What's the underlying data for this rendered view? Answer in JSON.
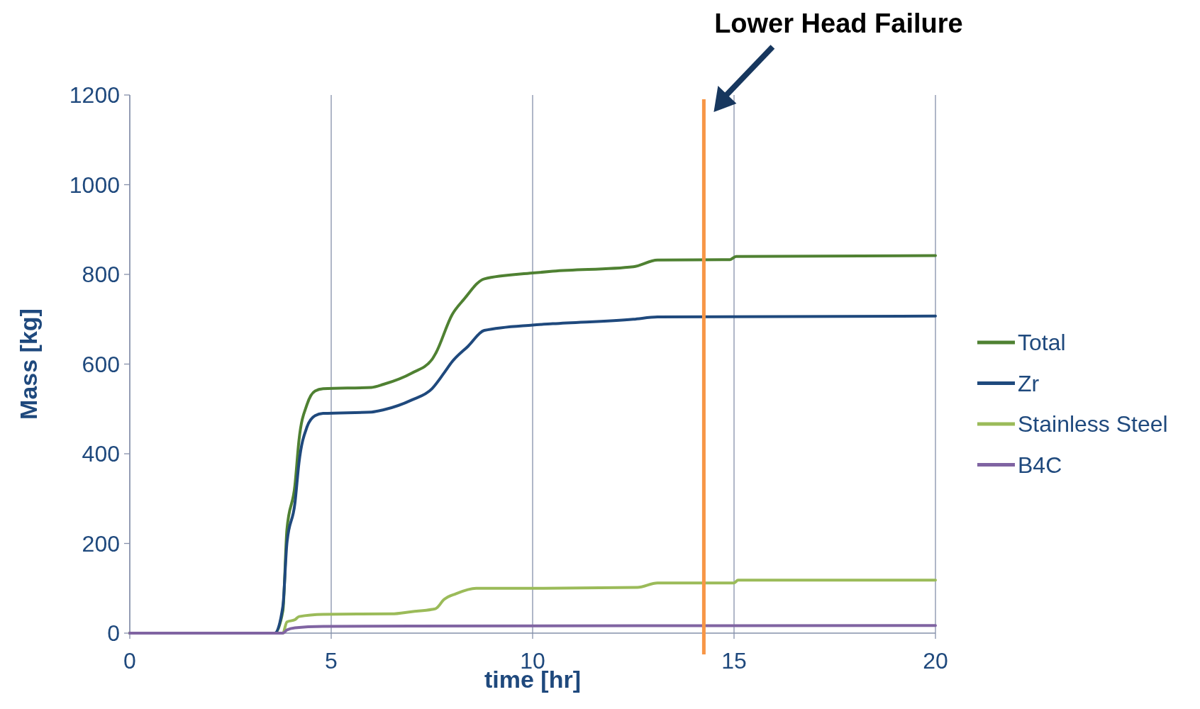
{
  "chart_data": {
    "type": "line",
    "xlabel": "time [hr]",
    "ylabel": "Mass [kg]",
    "xlim": [
      0,
      20
    ],
    "xticks": [
      0,
      5,
      10,
      15,
      20
    ],
    "ylim": [
      0,
      1200
    ],
    "yticks": [
      0,
      200,
      400,
      600,
      800,
      1000,
      1200
    ],
    "grid": "x",
    "legend": "right",
    "line_style": "solid",
    "marker": "none",
    "ref_lines": [
      {
        "axis": "x",
        "value": 14.25,
        "label": "Lower Head Failure",
        "color": "#f79646"
      }
    ],
    "series": [
      {
        "name": "Total",
        "color": "#4f8132",
        "x": [
          0,
          3.6,
          3.8,
          3.9,
          4.1,
          4.2,
          4.4,
          4.6,
          4.8,
          6,
          6.3,
          7,
          7.5,
          7.6,
          8,
          8.3,
          8.8,
          10,
          10.5,
          12.5,
          13.1,
          14.9,
          15.05,
          20
        ],
        "values": [
          0,
          0,
          50,
          230,
          330,
          430,
          510,
          540,
          545,
          548,
          555,
          580,
          610,
          625,
          710,
          745,
          790,
          803,
          807,
          817,
          832,
          833,
          840,
          842
        ]
      },
      {
        "name": "Zr",
        "color": "#1f497d",
        "x": [
          0,
          3.6,
          3.8,
          3.9,
          4.1,
          4.2,
          4.4,
          4.6,
          4.8,
          6,
          6.3,
          7,
          7.5,
          7.8,
          8,
          8.4,
          8.8,
          10,
          10.5,
          12.5,
          13.1,
          20
        ],
        "values": [
          0,
          0,
          60,
          200,
          290,
          380,
          460,
          485,
          490,
          493,
          498,
          520,
          545,
          580,
          605,
          640,
          675,
          687,
          690,
          700,
          705,
          707
        ]
      },
      {
        "name": "Stainless Steel",
        "color": "#9bbb59",
        "x": [
          0,
          3.8,
          3.9,
          4.1,
          4.2,
          4.8,
          6.5,
          7,
          7.5,
          7.6,
          7.8,
          8.1,
          8.6,
          10,
          12.6,
          13.1,
          15,
          15.1,
          20
        ],
        "values": [
          0,
          0,
          25,
          30,
          37,
          42,
          43,
          48,
          53,
          55,
          75,
          88,
          100,
          100,
          102,
          112,
          112,
          118,
          118
        ]
      },
      {
        "name": "B4C",
        "color": "#8064a2",
        "x": [
          0,
          3.8,
          3.9,
          4.1,
          4.8,
          7,
          20
        ],
        "values": [
          0,
          0,
          7,
          12,
          15,
          16,
          17
        ]
      }
    ]
  }
}
